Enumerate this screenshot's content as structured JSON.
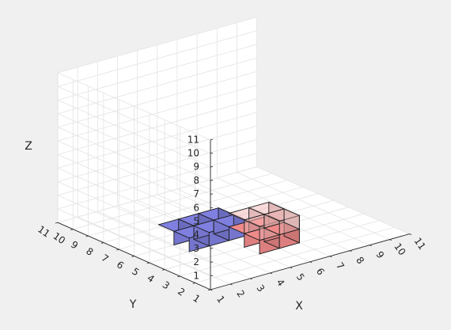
{
  "chart_data": {
    "type": "voxel-3d",
    "xlabel": "X",
    "ylabel": "Y",
    "zlabel": "Z",
    "xlim": [
      1,
      11
    ],
    "ylim": [
      1,
      11
    ],
    "zlim": [
      0,
      11
    ],
    "x_ticks": [
      "1",
      "2",
      "3",
      "4",
      "5",
      "6",
      "7",
      "8",
      "9",
      "10",
      "11"
    ],
    "y_ticks": [
      "1",
      "2",
      "3",
      "4",
      "5",
      "6",
      "7",
      "8",
      "9",
      "10",
      "11"
    ],
    "z_ticks": [
      "1",
      "2",
      "3",
      "4",
      "5",
      "6",
      "7",
      "8",
      "9",
      "10",
      "11"
    ],
    "grid": true,
    "series": [
      {
        "color": "#7f7fe0",
        "opacity": 1.0,
        "voxels": [
          [
            3,
            5,
            0
          ],
          [
            3,
            6,
            0
          ],
          [
            4,
            5,
            0
          ],
          [
            4,
            6,
            0
          ],
          [
            5,
            5,
            0
          ],
          [
            5,
            6,
            0
          ]
        ]
      },
      {
        "color": "#f08a8a",
        "opacity": 1.0,
        "voxels": [
          [
            5,
            3,
            0
          ],
          [
            5,
            4,
            0
          ],
          [
            6,
            3,
            0
          ],
          [
            6,
            4,
            0
          ]
        ]
      },
      {
        "color": "#f4b6b6",
        "opacity": 0.5,
        "voxels": [
          [
            5,
            3,
            1
          ],
          [
            5,
            4,
            1
          ],
          [
            6,
            3,
            1
          ],
          [
            6,
            4,
            1
          ]
        ]
      }
    ]
  }
}
